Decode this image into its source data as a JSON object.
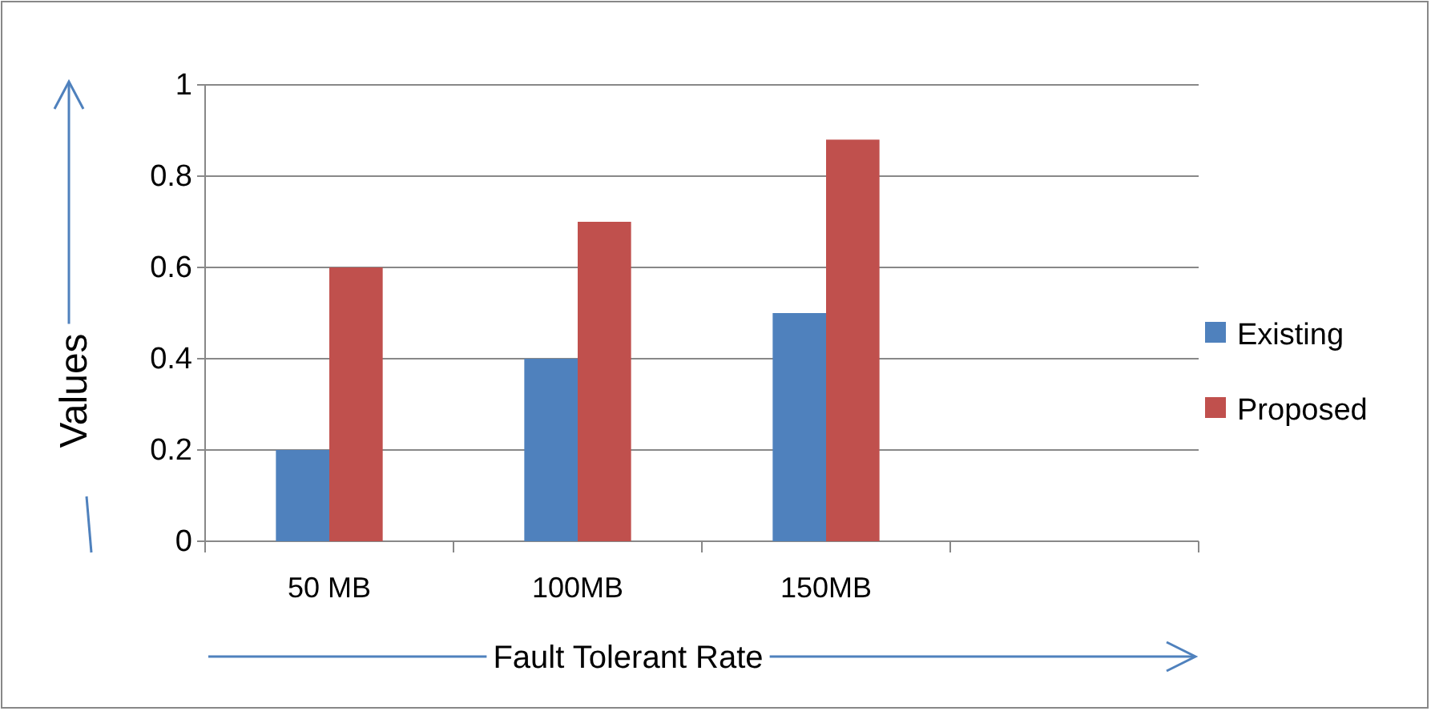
{
  "chart_data": {
    "type": "bar",
    "xlabel": "Fault Tolerant Rate",
    "ylabel": "Values",
    "categories": [
      "50 MB",
      "100MB",
      "150MB",
      null
    ],
    "series": [
      {
        "name": "Existing",
        "color": "#4f81bd",
        "values": [
          0.2,
          0.4,
          0.5,
          null
        ]
      },
      {
        "name": "Proposed",
        "color": "#c0504d",
        "values": [
          0.6,
          0.7,
          0.88,
          null
        ]
      }
    ],
    "ylim": [
      0,
      1
    ],
    "yticks": [
      0,
      0.2,
      0.4,
      0.6,
      0.8,
      1
    ],
    "grid": "y",
    "legend": "right"
  }
}
